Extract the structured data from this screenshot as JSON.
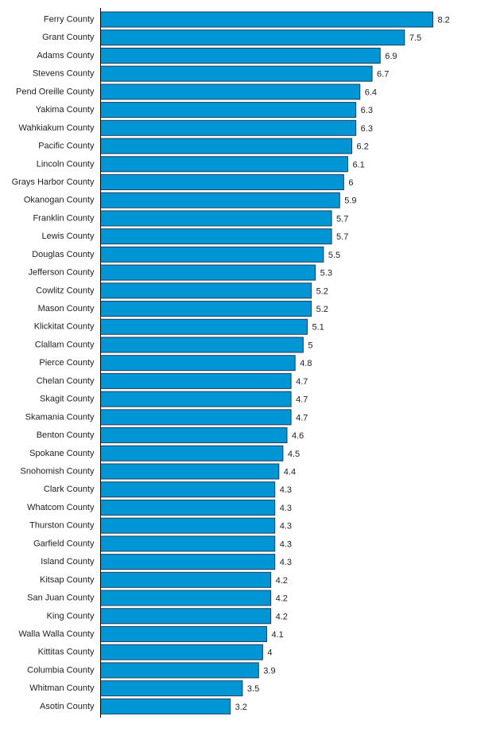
{
  "chart_data": {
    "type": "bar",
    "orientation": "horizontal",
    "categories": [
      "Ferry County",
      "Grant County",
      "Adams County",
      "Stevens County",
      "Pend Oreille County",
      "Yakima County",
      "Wahkiakum County",
      "Pacific County",
      "Lincoln County",
      "Grays Harbor County",
      "Okanogan County",
      "Franklin County",
      "Lewis County",
      "Douglas County",
      "Jefferson County",
      "Cowlitz County",
      "Mason County",
      "Klickitat County",
      "Clallam County",
      "Pierce County",
      "Chelan County",
      "Skagit County",
      "Skamania County",
      "Benton County",
      "Spokane County",
      "Snohomish County",
      "Clark County",
      "Whatcom County",
      "Thurston County",
      "Garfield County",
      "Island County",
      "Kitsap County",
      "San Juan County",
      "King County",
      "Walla Walla County",
      "Kittitas County",
      "Columbia County",
      "Whitman County",
      "Asotin County"
    ],
    "values": [
      8.2,
      7.5,
      6.9,
      6.7,
      6.4,
      6.3,
      6.3,
      6.2,
      6.1,
      6,
      5.9,
      5.7,
      5.7,
      5.5,
      5.3,
      5.2,
      5.2,
      5.1,
      5,
      4.8,
      4.7,
      4.7,
      4.7,
      4.6,
      4.5,
      4.4,
      4.3,
      4.3,
      4.3,
      4.3,
      4.3,
      4.2,
      4.2,
      4.2,
      4.1,
      4,
      3.9,
      3.5,
      3.2
    ],
    "title": "",
    "xlabel": "",
    "ylabel": "",
    "xlim": [
      0,
      8.2
    ],
    "grid": false,
    "legend": "none",
    "bar_color": "#0096d6",
    "bar_edge_color": "#1f3d5a"
  }
}
